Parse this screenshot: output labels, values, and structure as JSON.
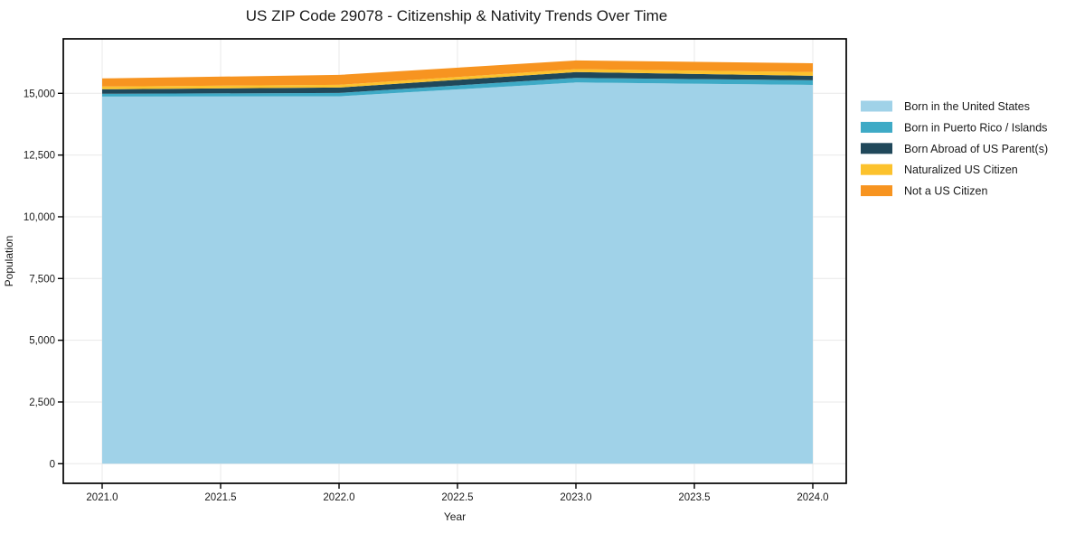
{
  "chart": {
    "title": "US ZIP Code 29078 - Citizenship & Nativity Trends Over Time",
    "xlabel": "Year",
    "ylabel": "Population",
    "x_tick_labels": [
      "2021.0",
      "2021.5",
      "2022.0",
      "2022.5",
      "2023.0",
      "2023.5",
      "2024.0"
    ],
    "y_tick_labels": [
      "0",
      "2,500",
      "5,000",
      "7,500",
      "10,000",
      "12,500",
      "15,000"
    ]
  },
  "chart_data": {
    "type": "area",
    "stacked": true,
    "title": "US ZIP Code 29078 - Citizenship & Nativity Trends Over Time",
    "xlabel": "Year",
    "ylabel": "Population",
    "x": [
      2021,
      2022,
      2023,
      2024
    ],
    "series": [
      {
        "name": "Born in the United States",
        "color": "#a0d2e8",
        "values": [
          14870,
          14880,
          15440,
          15340
        ]
      },
      {
        "name": "Born in Puerto Rico / Islands",
        "color": "#3eaac6",
        "values": [
          110,
          135,
          185,
          185
        ]
      },
      {
        "name": "Born Abroad of US Parent(s)",
        "color": "#20485a",
        "values": [
          185,
          220,
          235,
          185
        ]
      },
      {
        "name": "Naturalized US Citizen",
        "color": "#fcc22d",
        "values": [
          110,
          110,
          120,
          150
        ]
      },
      {
        "name": "Not a US Citizen",
        "color": "#f79420",
        "values": [
          330,
          400,
          350,
          360
        ]
      }
    ],
    "totals": [
      15605,
      15745,
      16330,
      16220
    ],
    "x_ticks": [
      2021.0,
      2021.5,
      2022.0,
      2022.5,
      2023.0,
      2023.5,
      2024.0
    ],
    "y_ticks": [
      0,
      2500,
      5000,
      7500,
      10000,
      12500,
      15000
    ],
    "xlim": [
      2020.84,
      2024.14
    ],
    "ylim": [
      -816,
      17147
    ],
    "grid": true,
    "grid_color": "#e8e8e8",
    "spine_color": "#000000",
    "legend_position": "right outside"
  }
}
